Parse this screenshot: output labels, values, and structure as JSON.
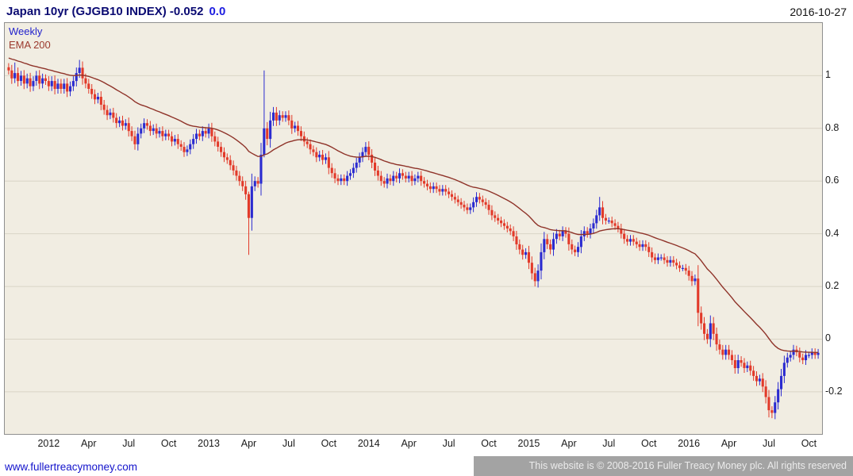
{
  "header": {
    "title": "Japan 10yr (GJGB10 INDEX) -0.052",
    "change": "0.0",
    "date": "2016-10-27"
  },
  "plot_labels": {
    "frequency": "Weekly",
    "ema": "EMA 200"
  },
  "footer": {
    "link": "www.fullertreacymoney.com",
    "copyright": "This website is © 2008-2016 Fuller Treacy Money plc. All rights reserved"
  },
  "chart_data": {
    "type": "candlestick",
    "title": "Japan 10yr (GJGB10 INDEX)",
    "frequency": "Weekly",
    "overlay": "EMA 200",
    "last_value": -0.052,
    "xlabel": "",
    "ylabel": "",
    "ylim": [
      -0.36,
      1.2
    ],
    "grid": "horizontal",
    "y_ticks": [
      {
        "v": 1.0,
        "label": "1"
      },
      {
        "v": 0.8,
        "label": "0.8"
      },
      {
        "v": 0.6,
        "label": "0.6"
      },
      {
        "v": 0.4,
        "label": "0.4"
      },
      {
        "v": 0.2,
        "label": "0.2"
      },
      {
        "v": 0.0,
        "label": "0"
      },
      {
        "v": -0.2,
        "label": "-0.2"
      }
    ],
    "x_ticks": {
      "indices": [
        13,
        26,
        39,
        52,
        65,
        78,
        91,
        104,
        117,
        130,
        143,
        156,
        169,
        182,
        195,
        208,
        221,
        234,
        247,
        260
      ],
      "labels": [
        "2012",
        "Apr",
        "Jul",
        "Oct",
        "2013",
        "Apr",
        "Jul",
        "Oct",
        "2014",
        "Apr",
        "Jul",
        "Oct",
        "2015",
        "Apr",
        "Jul",
        "Oct",
        "2016",
        "Apr",
        "Jul",
        "Oct"
      ]
    },
    "closes": [
      1.02,
      0.99,
      1.01,
      0.98,
      1.0,
      0.97,
      0.99,
      0.96,
      0.98,
      1.0,
      0.97,
      0.99,
      0.98,
      0.96,
      0.98,
      0.95,
      0.97,
      0.95,
      0.97,
      0.94,
      0.96,
      0.98,
      1.01,
      1.03,
      0.99,
      0.97,
      0.95,
      0.93,
      0.91,
      0.92,
      0.89,
      0.87,
      0.85,
      0.86,
      0.84,
      0.82,
      0.83,
      0.81,
      0.82,
      0.79,
      0.77,
      0.74,
      0.78,
      0.8,
      0.82,
      0.81,
      0.79,
      0.8,
      0.78,
      0.79,
      0.77,
      0.78,
      0.77,
      0.75,
      0.76,
      0.74,
      0.73,
      0.71,
      0.72,
      0.74,
      0.76,
      0.78,
      0.77,
      0.79,
      0.78,
      0.8,
      0.77,
      0.75,
      0.73,
      0.71,
      0.69,
      0.68,
      0.66,
      0.64,
      0.62,
      0.6,
      0.58,
      0.55,
      0.46,
      0.58,
      0.6,
      0.59,
      0.7,
      0.8,
      0.76,
      0.83,
      0.86,
      0.83,
      0.85,
      0.84,
      0.85,
      0.83,
      0.8,
      0.81,
      0.79,
      0.77,
      0.75,
      0.74,
      0.72,
      0.71,
      0.69,
      0.7,
      0.68,
      0.69,
      0.65,
      0.63,
      0.61,
      0.6,
      0.61,
      0.6,
      0.62,
      0.63,
      0.65,
      0.67,
      0.69,
      0.71,
      0.73,
      0.7,
      0.67,
      0.64,
      0.62,
      0.6,
      0.59,
      0.61,
      0.6,
      0.62,
      0.61,
      0.63,
      0.62,
      0.61,
      0.62,
      0.6,
      0.61,
      0.62,
      0.6,
      0.59,
      0.58,
      0.57,
      0.58,
      0.57,
      0.56,
      0.57,
      0.56,
      0.55,
      0.54,
      0.53,
      0.52,
      0.51,
      0.5,
      0.49,
      0.5,
      0.52,
      0.54,
      0.53,
      0.52,
      0.51,
      0.49,
      0.47,
      0.46,
      0.45,
      0.44,
      0.43,
      0.42,
      0.41,
      0.39,
      0.36,
      0.34,
      0.32,
      0.33,
      0.29,
      0.25,
      0.22,
      0.26,
      0.33,
      0.38,
      0.36,
      0.34,
      0.38,
      0.4,
      0.39,
      0.41,
      0.4,
      0.36,
      0.34,
      0.33,
      0.35,
      0.39,
      0.41,
      0.4,
      0.42,
      0.44,
      0.47,
      0.5,
      0.46,
      0.45,
      0.45,
      0.44,
      0.43,
      0.42,
      0.4,
      0.38,
      0.37,
      0.38,
      0.37,
      0.36,
      0.35,
      0.36,
      0.35,
      0.33,
      0.31,
      0.3,
      0.31,
      0.31,
      0.3,
      0.29,
      0.3,
      0.29,
      0.28,
      0.27,
      0.27,
      0.26,
      0.24,
      0.22,
      0.23,
      0.1,
      0.06,
      0.02,
      0.0,
      0.06,
      0.02,
      -0.02,
      -0.04,
      -0.06,
      -0.04,
      -0.06,
      -0.08,
      -0.11,
      -0.08,
      -0.09,
      -0.11,
      -0.1,
      -0.12,
      -0.14,
      -0.16,
      -0.15,
      -0.18,
      -0.22,
      -0.27,
      -0.28,
      -0.24,
      -0.19,
      -0.14,
      -0.09,
      -0.07,
      -0.06,
      -0.04,
      -0.05,
      -0.07,
      -0.08,
      -0.06,
      -0.06,
      -0.05,
      -0.06,
      -0.052
    ],
    "wick_overrides": {
      "2": {
        "h": 1.05
      },
      "23": {
        "h": 1.06
      },
      "78": {
        "h": 0.56,
        "l": 0.32
      },
      "83": {
        "h": 1.02,
        "l": 0.69
      },
      "171": {
        "l": 0.2
      },
      "192": {
        "h": 0.54
      },
      "248": {
        "l": -0.3
      }
    },
    "ema_render_period": 35,
    "ema_seed": 1.07,
    "colors": {
      "up": "#2b2bd0",
      "down": "#e23a2a",
      "ema": "#8f3329",
      "grid": "#d9d4c6",
      "plot_bg": "#f1ede2"
    }
  }
}
